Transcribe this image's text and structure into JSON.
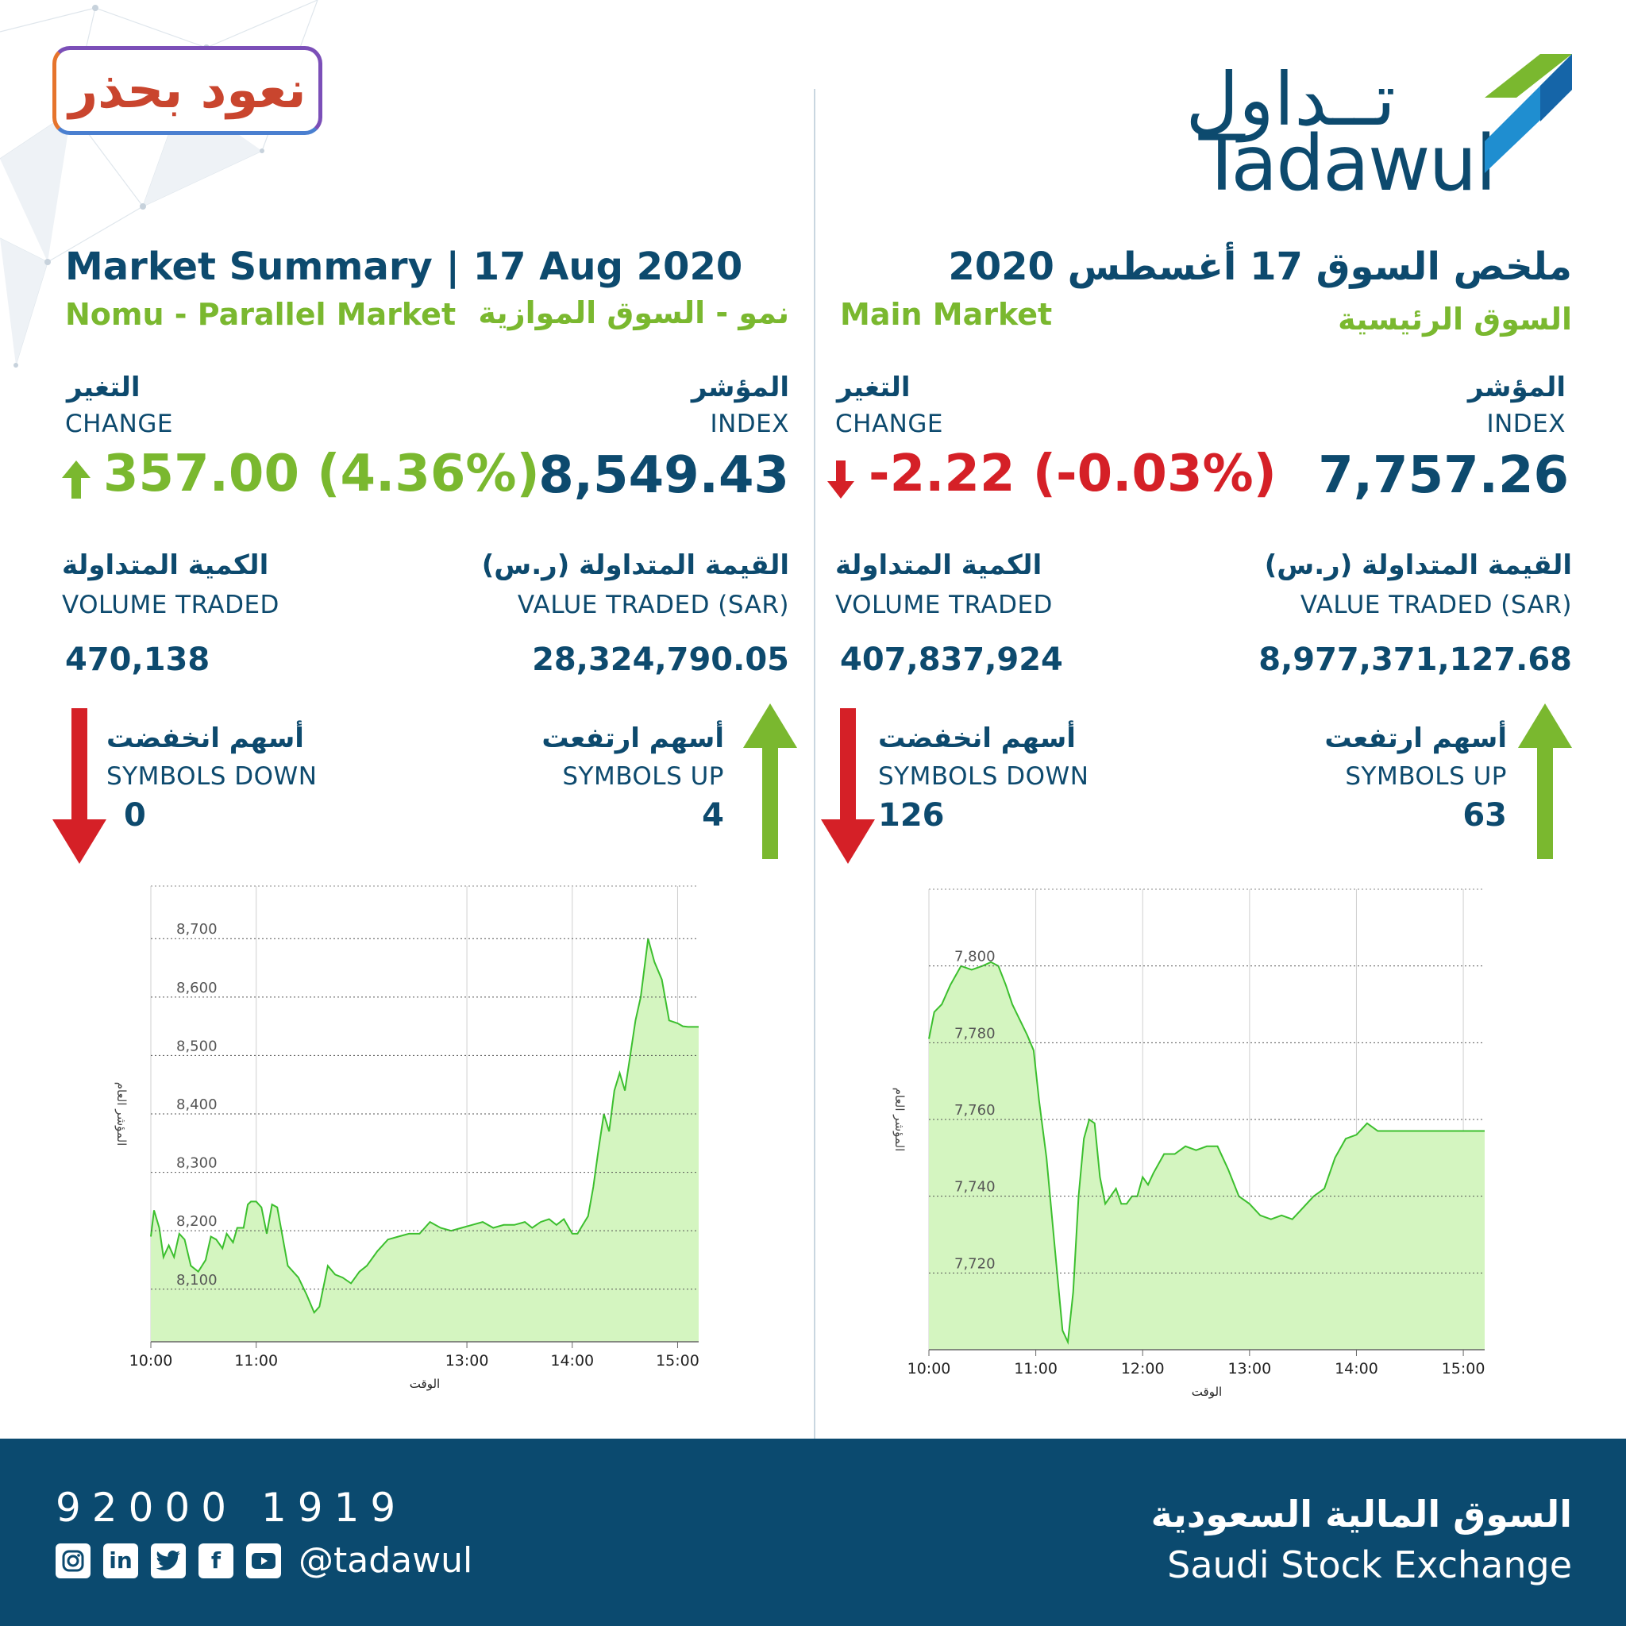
{
  "badge": {
    "text": "نعود بحذر"
  },
  "logo": {
    "arabic": "تــداول",
    "english": "Tadawul"
  },
  "parallel": {
    "title": "Market Summary | 17 Aug 2020",
    "name_en": "Nomu - Parallel Market",
    "name_ar": "نمو - السوق الموازية",
    "change_ar": "التغير",
    "change_en": "CHANGE",
    "change_value": "357.00 (4.36%)",
    "index_ar": "المؤشر",
    "index_en": "INDEX",
    "index_value": "8,549.43",
    "volume_ar": "الكمية المتداولة",
    "volume_en": "VOLUME TRADED",
    "volume_value": "470,138",
    "value_ar": "القيمة المتداولة (ر.س)",
    "value_en": "VALUE TRADED (SAR)",
    "value_value": "28,324,790.05",
    "down_ar": "أسهم انخفضت",
    "down_en": "SYMBOLS DOWN",
    "down_value": "0",
    "up_ar": "أسهم ارتفعت",
    "up_en": "SYMBOLS UP",
    "up_value": "4"
  },
  "main": {
    "title": "ملخص السوق 17 أغسطس 2020",
    "name_en": "Main Market",
    "name_ar": "السوق الرئيسية",
    "change_ar": "التغير",
    "change_en": "CHANGE",
    "change_value": "-2.22 (-0.03%)",
    "index_ar": "المؤشر",
    "index_en": "INDEX",
    "index_value": "7,757.26",
    "volume_ar": "الكمية المتداولة",
    "volume_en": "VOLUME TRADED",
    "volume_value": "407,837,924",
    "value_ar": "القيمة المتداولة (ر.س)",
    "value_en": "VALUE TRADED (SAR)",
    "value_value": "8,977,371,127.68",
    "down_ar": "أسهم انخفضت",
    "down_en": "SYMBOLS DOWN",
    "down_value": "126",
    "up_ar": "أسهم ارتفعت",
    "up_en": "SYMBOLS UP",
    "up_value": "63"
  },
  "colors": {
    "navy": "#0d4a6e",
    "green": "#7ab82f",
    "red": "#d52027",
    "chart_fill": "#d4f5c0",
    "chart_line": "#3cbf2e",
    "footer": "#0b4a6f"
  },
  "footer": {
    "phone": "92000 1919",
    "handle": "@tadawul",
    "exchange_ar": "السوق المالية السعودية",
    "exchange_en": "Saudi Stock Exchange",
    "social_icons": [
      "instagram-icon",
      "linkedin-icon",
      "twitter-icon",
      "facebook-icon",
      "youtube-icon"
    ]
  },
  "chart_data": [
    {
      "type": "area",
      "market": "Nomu - Parallel Market",
      "xlabel": "الوقت",
      "ylabel": "المؤشر العام",
      "x_ticks": [
        "10:00",
        "11:00",
        "13:00",
        "14:00",
        "15:00"
      ],
      "x_tick_hours": [
        10,
        11,
        13,
        14,
        15
      ],
      "y_ticks": [
        "8,100",
        "8,200",
        "8,300",
        "8,400",
        "8,500",
        "8,600",
        "8,700"
      ],
      "y_tick_values": [
        8100,
        8200,
        8300,
        8400,
        8500,
        8600,
        8700
      ],
      "xlim": [
        10.0,
        15.2
      ],
      "ylim": [
        8010,
        8790
      ],
      "grid": true,
      "x": [
        10.0,
        10.03,
        10.08,
        10.12,
        10.17,
        10.22,
        10.27,
        10.32,
        10.38,
        10.45,
        10.52,
        10.57,
        10.62,
        10.68,
        10.72,
        10.78,
        10.82,
        10.88,
        10.92,
        10.95,
        11.0,
        11.05,
        11.1,
        11.15,
        11.2,
        11.3,
        11.4,
        11.48,
        11.55,
        11.6,
        11.68,
        11.75,
        11.82,
        11.9,
        11.98,
        12.05,
        12.15,
        12.25,
        12.35,
        12.45,
        12.55,
        12.65,
        12.75,
        12.85,
        12.95,
        13.05,
        13.15,
        13.25,
        13.35,
        13.45,
        13.55,
        13.62,
        13.7,
        13.78,
        13.85,
        13.92,
        14.0,
        14.05,
        14.1,
        14.15,
        14.2,
        14.25,
        14.3,
        14.35,
        14.4,
        14.45,
        14.5,
        14.55,
        14.6,
        14.65,
        14.72,
        14.78,
        14.85,
        14.92,
        15.0,
        15.05,
        15.1,
        15.2
      ],
      "values": [
        8190,
        8235,
        8205,
        8155,
        8175,
        8155,
        8195,
        8185,
        8140,
        8130,
        8150,
        8190,
        8185,
        8170,
        8195,
        8180,
        8205,
        8205,
        8245,
        8250,
        8250,
        8240,
        8195,
        8245,
        8240,
        8140,
        8120,
        8090,
        8060,
        8070,
        8140,
        8125,
        8120,
        8110,
        8130,
        8140,
        8165,
        8185,
        8190,
        8195,
        8195,
        8215,
        8205,
        8200,
        8205,
        8210,
        8215,
        8205,
        8210,
        8210,
        8215,
        8205,
        8215,
        8220,
        8210,
        8220,
        8195,
        8195,
        8210,
        8225,
        8275,
        8340,
        8400,
        8370,
        8440,
        8470,
        8440,
        8500,
        8560,
        8600,
        8700,
        8660,
        8630,
        8560,
        8555,
        8550,
        8549,
        8549
      ]
    },
    {
      "type": "area",
      "market": "Main Market",
      "xlabel": "الوقت",
      "ylabel": "المؤشر العام",
      "x_ticks": [
        "10:00",
        "11:00",
        "12:00",
        "13:00",
        "14:00",
        "15:00"
      ],
      "x_tick_hours": [
        10,
        11,
        12,
        13,
        14,
        15
      ],
      "y_ticks": [
        "7,720",
        "7,740",
        "7,760",
        "7,780",
        "7,800"
      ],
      "y_tick_values": [
        7720,
        7740,
        7760,
        7780,
        7800
      ],
      "xlim": [
        10.0,
        15.2
      ],
      "ylim": [
        7700,
        7820
      ],
      "grid": true,
      "x": [
        10.0,
        10.05,
        10.12,
        10.2,
        10.3,
        10.4,
        10.5,
        10.58,
        10.65,
        10.72,
        10.78,
        10.85,
        10.92,
        10.98,
        11.03,
        11.1,
        11.15,
        11.2,
        11.25,
        11.3,
        11.35,
        11.4,
        11.45,
        11.5,
        11.55,
        11.6,
        11.65,
        11.7,
        11.75,
        11.8,
        11.85,
        11.9,
        11.95,
        12.0,
        12.05,
        12.1,
        12.2,
        12.3,
        12.4,
        12.5,
        12.6,
        12.7,
        12.8,
        12.9,
        13.0,
        13.1,
        13.2,
        13.3,
        13.4,
        13.5,
        13.6,
        13.7,
        13.8,
        13.9,
        14.0,
        14.1,
        14.2,
        14.3,
        14.4,
        14.5,
        14.6,
        14.7,
        14.8,
        14.9,
        15.0,
        15.1,
        15.2
      ],
      "values": [
        7781,
        7788,
        7790,
        7795,
        7800,
        7799,
        7800,
        7801,
        7800,
        7795,
        7790,
        7786,
        7782,
        7778,
        7765,
        7750,
        7735,
        7720,
        7705,
        7702,
        7715,
        7740,
        7755,
        7760,
        7759,
        7745,
        7738,
        7740,
        7742,
        7738,
        7738,
        7740,
        7740,
        7745,
        7743,
        7746,
        7751,
        7751,
        7753,
        7752,
        7753,
        7753,
        7747,
        7740,
        7738,
        7735,
        7734,
        7735,
        7734,
        7737,
        7740,
        7742,
        7750,
        7755,
        7756,
        7759,
        7757,
        7757,
        7757,
        7757,
        7757,
        7757,
        7757,
        7757,
        7757,
        7757,
        7757
      ]
    }
  ]
}
